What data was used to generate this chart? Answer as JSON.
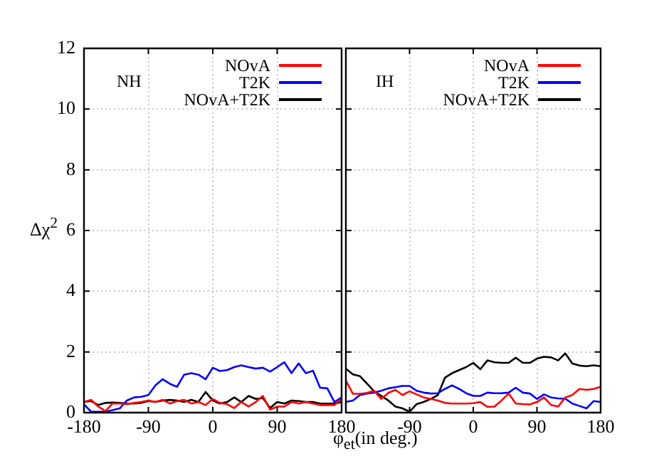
{
  "chart_data": [
    {
      "type": "line",
      "ylabel": "Δχ$^{2}$",
      "xlabel": "φ$_{et}$(in deg.)",
      "annotations": [
        "NH"
      ],
      "legend": "top right",
      "grid": true,
      "xlim": [
        -180,
        180
      ],
      "xticks": [
        -180,
        -90,
        0,
        90,
        180
      ],
      "ylim": [
        0,
        12
      ],
      "yticks": [
        0,
        2,
        4,
        6,
        8,
        10,
        12
      ],
      "x": [
        -180,
        -170,
        -160,
        -150,
        -140,
        -130,
        -120,
        -110,
        -100,
        -90,
        -80,
        -70,
        -60,
        -50,
        -40,
        -30,
        -20,
        -10,
        0,
        10,
        20,
        30,
        40,
        50,
        60,
        70,
        80,
        90,
        100,
        110,
        120,
        130,
        140,
        150,
        160,
        170,
        180
      ],
      "series": [
        {
          "name": "NOvA",
          "color": "#ff0000",
          "values": [
            0.35,
            0.42,
            0.2,
            0.05,
            0.3,
            0.3,
            0.28,
            0.32,
            0.35,
            0.4,
            0.35,
            0.42,
            0.3,
            0.38,
            0.42,
            0.3,
            0.35,
            0.25,
            0.45,
            0.32,
            0.28,
            0.15,
            0.35,
            0.2,
            0.35,
            0.55,
            0.1,
            0.2,
            0.2,
            0.35,
            0.3,
            0.35,
            0.3,
            0.25,
            0.25,
            0.25,
            0.45
          ]
        },
        {
          "name": "T2K",
          "color": "#0000ff",
          "values": [
            0.27,
            0.03,
            0.03,
            0.03,
            0.08,
            0.14,
            0.4,
            0.5,
            0.52,
            0.58,
            0.9,
            1.1,
            0.95,
            0.85,
            1.25,
            1.3,
            1.25,
            1.1,
            1.48,
            1.37,
            1.4,
            1.5,
            1.56,
            1.5,
            1.45,
            1.48,
            1.35,
            1.5,
            1.66,
            1.3,
            1.62,
            1.3,
            1.38,
            0.82,
            0.8,
            0.35,
            0.5
          ]
        },
        {
          "name": "NOvA+T2K",
          "color": "#000000",
          "values": [
            0.35,
            0.38,
            0.25,
            0.32,
            0.33,
            0.32,
            0.3,
            0.3,
            0.32,
            0.38,
            0.35,
            0.4,
            0.42,
            0.4,
            0.35,
            0.42,
            0.35,
            0.68,
            0.4,
            0.3,
            0.35,
            0.5,
            0.35,
            0.55,
            0.45,
            0.48,
            0.15,
            0.35,
            0.3,
            0.4,
            0.38,
            0.35,
            0.35,
            0.3,
            0.3,
            0.3,
            0.35
          ]
        }
      ]
    },
    {
      "type": "line",
      "annotations": [
        "IH"
      ],
      "legend": "top right",
      "grid": true,
      "tick_labels": "x",
      "xlim": [
        -180,
        180
      ],
      "xticks": [
        {
          "value": -180,
          "label": null
        },
        -90,
        0,
        90,
        180
      ],
      "ylim": [
        0,
        12
      ],
      "yticks": [
        0,
        2,
        4,
        6,
        8,
        10,
        12
      ],
      "x": [
        -180,
        -170,
        -160,
        -150,
        -140,
        -130,
        -120,
        -110,
        -100,
        -90,
        -80,
        -70,
        -60,
        -50,
        -40,
        -30,
        -20,
        -10,
        0,
        10,
        20,
        30,
        40,
        50,
        60,
        70,
        80,
        90,
        100,
        110,
        120,
        130,
        140,
        150,
        160,
        170,
        180
      ],
      "series": [
        {
          "name": "NOvA",
          "color": "#ff0000",
          "values": [
            1.05,
            0.62,
            0.62,
            0.65,
            0.72,
            0.45,
            0.65,
            0.75,
            0.58,
            0.7,
            0.6,
            0.5,
            0.45,
            0.4,
            0.32,
            0.3,
            0.3,
            0.3,
            0.31,
            0.35,
            0.19,
            0.2,
            0.4,
            0.63,
            0.3,
            0.28,
            0.27,
            0.35,
            0.5,
            0.25,
            0.2,
            0.5,
            0.58,
            0.78,
            0.75,
            0.78,
            0.85
          ]
        },
        {
          "name": "T2K",
          "color": "#0000ff",
          "values": [
            0.35,
            0.4,
            0.58,
            0.63,
            0.66,
            0.72,
            0.8,
            0.84,
            0.88,
            0.88,
            0.72,
            0.66,
            0.63,
            0.64,
            0.78,
            0.9,
            0.78,
            0.64,
            0.55,
            0.55,
            0.66,
            0.64,
            0.64,
            0.66,
            0.82,
            0.66,
            0.63,
            0.45,
            0.6,
            0.5,
            0.47,
            0.46,
            0.3,
            0.22,
            0.14,
            0.38,
            0.35
          ]
        },
        {
          "name": "NOvA+T2K",
          "color": "#000000",
          "values": [
            1.45,
            1.26,
            1.2,
            0.95,
            0.7,
            0.55,
            0.4,
            0.2,
            0.14,
            0.03,
            0.28,
            0.35,
            0.45,
            0.58,
            1.15,
            1.3,
            1.4,
            1.5,
            1.64,
            1.43,
            1.72,
            1.66,
            1.64,
            1.64,
            1.81,
            1.64,
            1.64,
            1.78,
            1.84,
            1.82,
            1.72,
            1.95,
            1.62,
            1.55,
            1.53,
            1.56,
            1.53
          ]
        }
      ]
    }
  ]
}
